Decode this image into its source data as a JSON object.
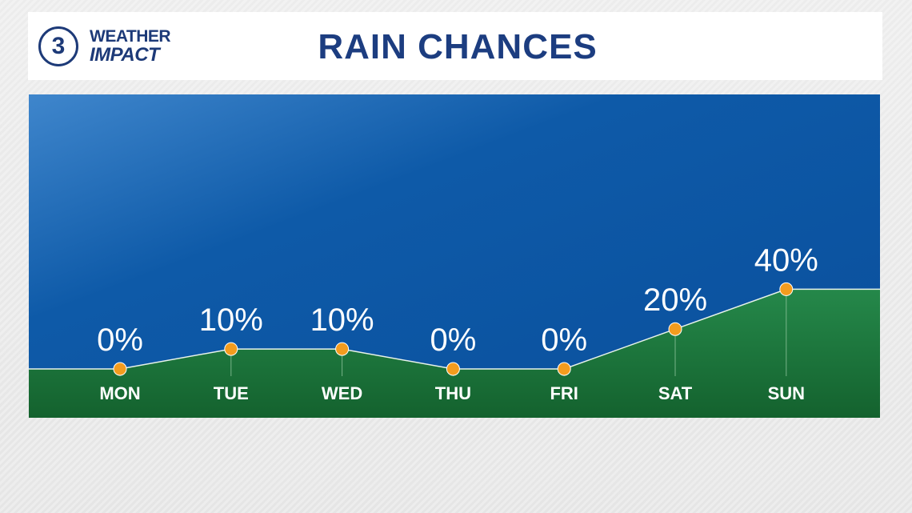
{
  "header": {
    "logo_number": "3",
    "logo_line1": "WEATHER",
    "logo_line2": "IMPACT",
    "title": "RAIN CHANCES"
  },
  "colors": {
    "sky": "#0e5aa8",
    "ground": "#1e7a3c",
    "point": "#f39c1e",
    "title": "#1c3d80"
  },
  "chart_data": {
    "type": "area",
    "title": "RAIN CHANCES",
    "categories": [
      "MON",
      "TUE",
      "WED",
      "THU",
      "FRI",
      "SAT",
      "SUN"
    ],
    "values": [
      0,
      10,
      10,
      0,
      0,
      20,
      40
    ],
    "data_labels": [
      "0%",
      "10%",
      "10%",
      "0%",
      "0%",
      "20%",
      "40%"
    ],
    "unit": "%",
    "xlabel": "",
    "ylabel": "",
    "ylim": [
      0,
      100
    ],
    "grid": false,
    "legend": "none"
  }
}
